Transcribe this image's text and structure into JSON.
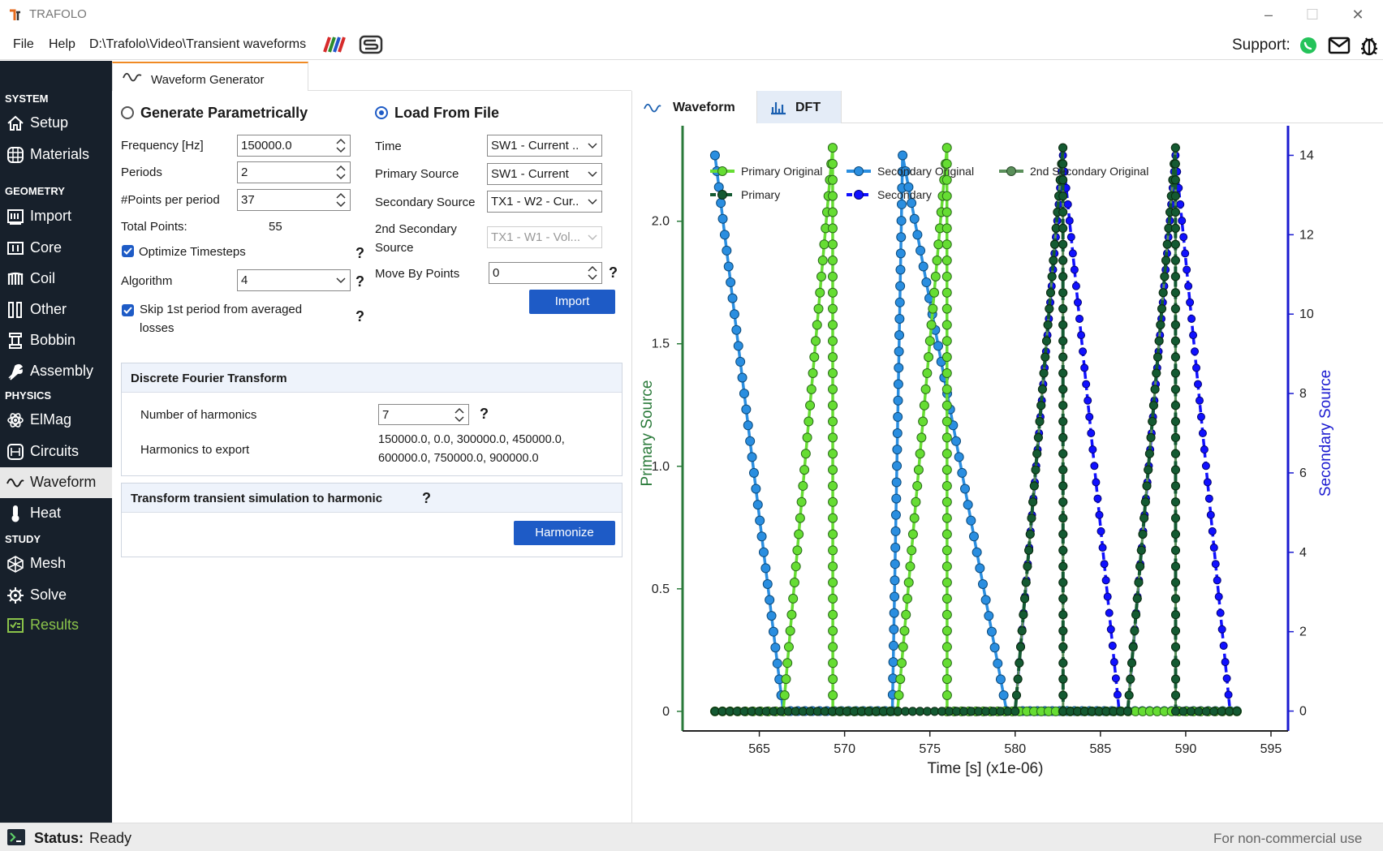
{
  "app": {
    "title": "TRAFOLO"
  },
  "menu": {
    "file": "File",
    "help": "Help",
    "path": "D:\\Trafolo\\Video\\Transient waveforms",
    "support": "Support:"
  },
  "sidebar": {
    "sections": [
      "SYSTEM",
      "GEOMETRY",
      "PHYSICS",
      "STUDY"
    ],
    "items": [
      {
        "label": "Setup",
        "icon": "home-icon"
      },
      {
        "label": "Materials",
        "icon": "grid-icon"
      },
      {
        "label": "Import",
        "icon": "import-icon"
      },
      {
        "label": "Core",
        "icon": "core-icon"
      },
      {
        "label": "Coil",
        "icon": "coil-icon"
      },
      {
        "label": "Other",
        "icon": "other-icon"
      },
      {
        "label": "Bobbin",
        "icon": "bobbin-icon"
      },
      {
        "label": "Assembly",
        "icon": "wrench-icon"
      },
      {
        "label": "ElMag",
        "icon": "atom-icon"
      },
      {
        "label": "Circuits",
        "icon": "circuit-icon"
      },
      {
        "label": "Waveform",
        "icon": "wave-icon"
      },
      {
        "label": "Heat",
        "icon": "thermometer-icon"
      },
      {
        "label": "Mesh",
        "icon": "mesh-icon"
      },
      {
        "label": "Solve",
        "icon": "solve-icon"
      },
      {
        "label": "Results",
        "icon": "results-icon"
      }
    ]
  },
  "tab": {
    "label": "Waveform Generator"
  },
  "param": {
    "title": "Generate Parametrically",
    "frequency_label": "Frequency [Hz]",
    "frequency": "150000.0",
    "periods_label": "Periods",
    "periods": "2",
    "points_label": "#Points per period",
    "points": "37",
    "total_label": "Total Points:",
    "total": "55",
    "optimize_label": "Optimize Timesteps",
    "algorithm_label": "Algorithm",
    "algorithm": "4",
    "skip_label_1": "Skip 1st period from averaged",
    "skip_label_2": "losses",
    "q": "?"
  },
  "file": {
    "title": "Load From File",
    "time_label": "Time",
    "time": "SW1 - Current ..",
    "primary_label": "Primary Source",
    "primary": "SW1 - Current",
    "secondary_label": "Secondary Source",
    "secondary": "TX1 - W2 - Cur..",
    "second_label_1": "2nd Secondary",
    "second_label_2": "Source",
    "second": "TX1 - W1 - Vol...",
    "move_label": "Move By Points",
    "move": "0",
    "import": "Import"
  },
  "dft": {
    "title": "Discrete Fourier Transform",
    "harm_label": "Number of harmonics",
    "harm": "7",
    "export_label": "Harmonics to export",
    "export_line1": "150000.0, 0.0, 300000.0, 450000.0,",
    "export_line2": "600000.0, 750000.0, 900000.0"
  },
  "transform": {
    "title": "Transform transient simulation to harmonic",
    "button": "Harmonize"
  },
  "graph_tabs": {
    "waveform": "Waveform",
    "dft": "DFT"
  },
  "status": {
    "label": "Status:",
    "value": "Ready",
    "right": "For non-commercial use"
  },
  "chart_data": {
    "type": "line",
    "xlabel": "Time [s] (x1e-06)",
    "ylabel": "Primary Source",
    "y2label": "Secondary Source",
    "xlim": [
      560.5,
      596
    ],
    "ylim": [
      -0.08,
      2.35
    ],
    "y2lim": [
      -0.5,
      14.5
    ],
    "xticks": [
      565,
      570,
      575,
      580,
      585,
      590,
      595
    ],
    "yticks": [
      0,
      0.5,
      1.0,
      1.5,
      2.0
    ],
    "y2ticks": [
      0,
      2,
      4,
      6,
      8,
      10,
      12,
      14
    ],
    "xtick_labels": [
      "565",
      "570",
      "575",
      "580",
      "585",
      "590",
      "595"
    ],
    "ytick_labels": [
      "0",
      "0.5",
      "1.0",
      "1.5",
      "2.0"
    ],
    "y2tick_labels": [
      "0",
      "2",
      "4",
      "6",
      "8",
      "10",
      "12",
      "14"
    ],
    "legend_position": "top",
    "colors": {
      "primary_original": "#66dd33",
      "primary": "#145a32",
      "secondary_original": "#2a8ee0",
      "secondary": "#1010ff",
      "second_secondary_original": "#5a8f5a"
    },
    "series": [
      {
        "name": "Primary Original",
        "axis": "left",
        "x": [
          562.4,
          566.4,
          569.3,
          569.31,
          573.1,
          576.0,
          576.01,
          593.0
        ],
        "y": [
          0,
          0,
          2.3,
          0,
          0,
          2.3,
          0,
          0
        ]
      },
      {
        "name": "Secondary Original",
        "axis": "right",
        "x": [
          562.4,
          566.4,
          572.8,
          573.4,
          579.5,
          580.0,
          586.1,
          586.6,
          592.6,
          593.0
        ],
        "y": [
          14,
          0,
          0,
          14,
          0,
          0,
          0,
          0,
          0,
          0
        ]
      },
      {
        "name": "2nd Secondary Original",
        "axis": "left",
        "x": [
          562.4,
          580.0,
          582.8,
          582.81,
          586.6,
          589.4,
          589.41,
          593.0
        ],
        "y": [
          0,
          0,
          2.3,
          0,
          0,
          2.3,
          0,
          0
        ]
      },
      {
        "name": "Primary",
        "axis": "left",
        "x": [
          562.4,
          580.0,
          582.8,
          582.81,
          586.6,
          589.4,
          589.41,
          593.0
        ],
        "y": [
          0,
          0,
          2.3,
          0,
          0,
          2.3,
          0,
          0
        ]
      },
      {
        "name": "Secondary",
        "axis": "right",
        "x": [
          579.5,
          580.0,
          582.8,
          586.1,
          586.6,
          589.4,
          592.6,
          593.0
        ],
        "y": [
          0,
          0,
          14,
          0,
          0,
          14,
          0,
          0
        ]
      }
    ]
  }
}
